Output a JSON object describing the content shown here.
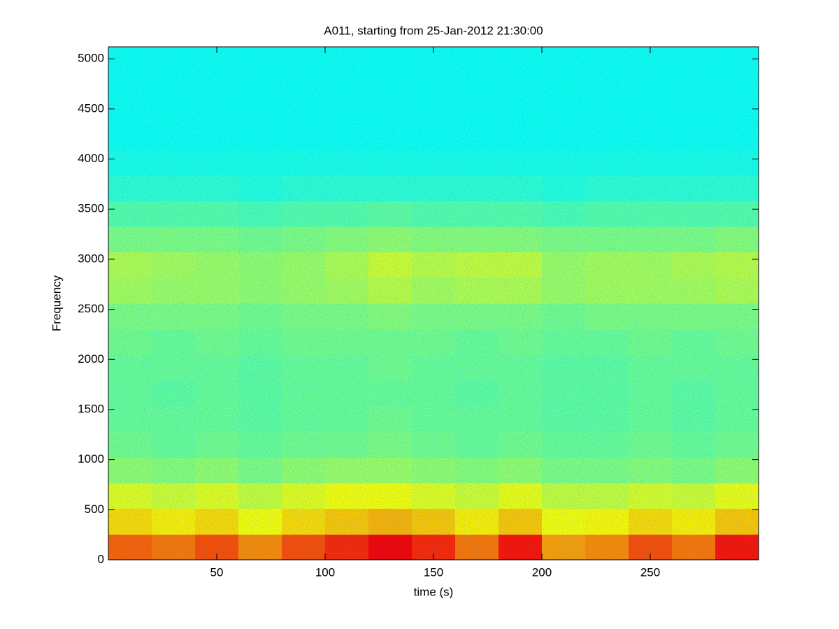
{
  "chart_data": {
    "type": "heatmap",
    "title": "A011, starting from 25-Jan-2012 21:30:00",
    "x_label": "time (s)",
    "y_label": "Frequency",
    "colormap": "jet",
    "xlim": [
      0,
      300
    ],
    "xticks": [
      50,
      100,
      150,
      200,
      250
    ],
    "ylim": [
      0,
      5120
    ],
    "yticks": [
      0,
      500,
      1000,
      1500,
      2000,
      2500,
      3000,
      3500,
      4000,
      4500,
      5000
    ],
    "x": [
      10,
      30,
      50,
      70,
      90,
      110,
      130,
      150,
      170,
      190,
      210,
      230,
      250,
      270,
      290
    ],
    "y": [
      128,
      384,
      640,
      896,
      1152,
      1408,
      1664,
      1920,
      2176,
      2432,
      2688,
      2944,
      3200,
      3456,
      3712,
      3968,
      4224,
      4480,
      4736,
      4992
    ],
    "z": [
      [
        0.78,
        0.76,
        0.8,
        0.74,
        0.8,
        0.84,
        0.88,
        0.84,
        0.76,
        0.86,
        0.72,
        0.74,
        0.8,
        0.76,
        0.86
      ],
      [
        0.66,
        0.64,
        0.66,
        0.62,
        0.66,
        0.68,
        0.7,
        0.68,
        0.64,
        0.68,
        0.62,
        0.63,
        0.66,
        0.64,
        0.68
      ],
      [
        0.6,
        0.58,
        0.6,
        0.57,
        0.6,
        0.62,
        0.62,
        0.6,
        0.58,
        0.61,
        0.57,
        0.57,
        0.59,
        0.58,
        0.61
      ],
      [
        0.52,
        0.51,
        0.52,
        0.5,
        0.52,
        0.53,
        0.53,
        0.52,
        0.51,
        0.52,
        0.5,
        0.5,
        0.51,
        0.5,
        0.52
      ],
      [
        0.49,
        0.48,
        0.49,
        0.48,
        0.49,
        0.49,
        0.5,
        0.49,
        0.48,
        0.49,
        0.48,
        0.48,
        0.49,
        0.48,
        0.49
      ],
      [
        0.48,
        0.48,
        0.48,
        0.47,
        0.48,
        0.48,
        0.49,
        0.48,
        0.48,
        0.48,
        0.47,
        0.47,
        0.48,
        0.47,
        0.48
      ],
      [
        0.48,
        0.47,
        0.48,
        0.47,
        0.48,
        0.48,
        0.48,
        0.48,
        0.47,
        0.48,
        0.47,
        0.47,
        0.48,
        0.47,
        0.48
      ],
      [
        0.48,
        0.48,
        0.48,
        0.47,
        0.48,
        0.48,
        0.49,
        0.48,
        0.48,
        0.48,
        0.47,
        0.47,
        0.48,
        0.48,
        0.48
      ],
      [
        0.49,
        0.48,
        0.49,
        0.48,
        0.49,
        0.49,
        0.49,
        0.49,
        0.48,
        0.49,
        0.48,
        0.48,
        0.49,
        0.48,
        0.49
      ],
      [
        0.5,
        0.5,
        0.5,
        0.49,
        0.5,
        0.5,
        0.51,
        0.5,
        0.5,
        0.5,
        0.49,
        0.5,
        0.5,
        0.5,
        0.5
      ],
      [
        0.54,
        0.53,
        0.53,
        0.52,
        0.53,
        0.54,
        0.56,
        0.54,
        0.55,
        0.55,
        0.53,
        0.54,
        0.54,
        0.54,
        0.55
      ],
      [
        0.55,
        0.54,
        0.53,
        0.52,
        0.53,
        0.55,
        0.58,
        0.56,
        0.57,
        0.57,
        0.53,
        0.54,
        0.54,
        0.55,
        0.56
      ],
      [
        0.5,
        0.5,
        0.5,
        0.49,
        0.5,
        0.51,
        0.52,
        0.51,
        0.51,
        0.51,
        0.5,
        0.5,
        0.5,
        0.5,
        0.51
      ],
      [
        0.46,
        0.46,
        0.46,
        0.45,
        0.46,
        0.46,
        0.47,
        0.46,
        0.46,
        0.46,
        0.45,
        0.46,
        0.46,
        0.46,
        0.46
      ],
      [
        0.42,
        0.42,
        0.42,
        0.41,
        0.42,
        0.42,
        0.42,
        0.42,
        0.42,
        0.42,
        0.41,
        0.42,
        0.42,
        0.42,
        0.42
      ],
      [
        0.4,
        0.4,
        0.4,
        0.4,
        0.4,
        0.4,
        0.4,
        0.4,
        0.4,
        0.4,
        0.4,
        0.4,
        0.4,
        0.4,
        0.4
      ],
      [
        0.39,
        0.39,
        0.39,
        0.39,
        0.39,
        0.39,
        0.39,
        0.39,
        0.39,
        0.39,
        0.39,
        0.39,
        0.39,
        0.39,
        0.39
      ],
      [
        0.39,
        0.39,
        0.39,
        0.39,
        0.39,
        0.39,
        0.39,
        0.39,
        0.39,
        0.39,
        0.39,
        0.39,
        0.39,
        0.39,
        0.39
      ],
      [
        0.39,
        0.39,
        0.39,
        0.39,
        0.39,
        0.39,
        0.39,
        0.39,
        0.39,
        0.39,
        0.39,
        0.39,
        0.39,
        0.39,
        0.39
      ],
      [
        0.39,
        0.39,
        0.39,
        0.39,
        0.39,
        0.39,
        0.39,
        0.39,
        0.39,
        0.39,
        0.39,
        0.39,
        0.39,
        0.39,
        0.39
      ]
    ]
  }
}
